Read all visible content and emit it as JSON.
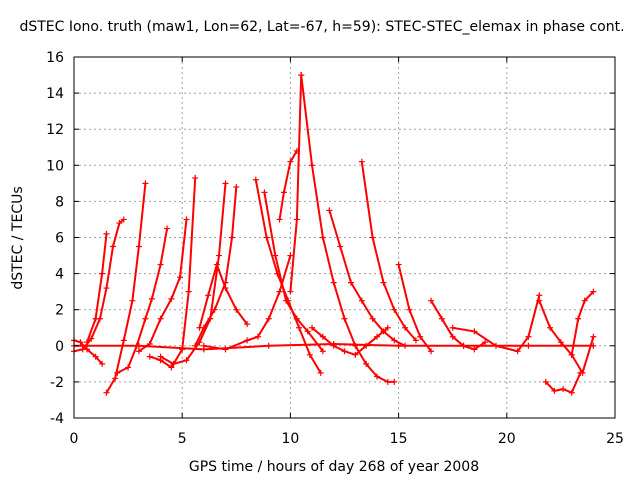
{
  "chart_data": {
    "type": "scatter",
    "title": "dSTEC Iono. truth (maw1, Lon=62, Lat=-67, h=59): STEC-STEC_elemax in phase cont.",
    "xlabel": "GPS time / hours of day 268 of year 2008",
    "ylabel": "dSTEC  / TECUs",
    "xlim": [
      0,
      25
    ],
    "ylim": [
      -4,
      16
    ],
    "xticks": [
      0,
      5,
      10,
      15,
      20,
      25
    ],
    "yticks": [
      -4,
      -2,
      0,
      2,
      4,
      6,
      8,
      10,
      12,
      14,
      16
    ],
    "grid": true,
    "marker": "+",
    "color": "#ff0000",
    "arcs": [
      {
        "x": [
          0.0,
          0.3,
          0.6,
          1.0,
          1.3
        ],
        "y": [
          0.3,
          0.2,
          -0.2,
          -0.6,
          -1.0
        ]
      },
      {
        "x": [
          0.0,
          0.4,
          0.8,
          1.2,
          1.5,
          1.8,
          2.1,
          2.3
        ],
        "y": [
          -0.3,
          -0.2,
          0.4,
          1.5,
          3.2,
          5.5,
          6.8,
          7.0
        ]
      },
      {
        "x": [
          1.5,
          1.9,
          2.3,
          2.7,
          3.0,
          3.3
        ],
        "y": [
          -2.6,
          -1.8,
          0.3,
          2.5,
          5.5,
          9.0
        ]
      },
      {
        "x": [
          0.6,
          1.0,
          1.3,
          1.5
        ],
        "y": [
          0.2,
          1.5,
          4.0,
          6.2
        ]
      },
      {
        "x": [
          2.0,
          2.5,
          2.9,
          3.3,
          3.6,
          4.0,
          4.3
        ],
        "y": [
          -1.5,
          -1.2,
          0.0,
          1.5,
          2.6,
          4.5,
          6.5
        ]
      },
      {
        "x": [
          3.0,
          3.5,
          4.0,
          4.5,
          4.9,
          5.2
        ],
        "y": [
          -0.3,
          0.1,
          1.5,
          2.6,
          3.8,
          7.0
        ]
      },
      {
        "x": [
          3.5,
          4.0,
          4.5,
          5.0,
          5.3,
          5.6
        ],
        "y": [
          -0.6,
          -0.8,
          -1.2,
          -0.2,
          3.0,
          9.3
        ]
      },
      {
        "x": [
          4.0,
          4.6,
          5.2,
          5.8,
          6.3,
          6.7,
          7.0
        ],
        "y": [
          -0.6,
          -1.0,
          -0.8,
          0.2,
          1.5,
          5.0,
          9.0
        ]
      },
      {
        "x": [
          5.6,
          6.0,
          6.5,
          7.0,
          7.3,
          7.5
        ],
        "y": [
          0.0,
          1.0,
          2.0,
          3.5,
          6.0,
          8.8
        ]
      },
      {
        "x": [
          5.8,
          6.2,
          6.6,
          7.0,
          7.5,
          8.0
        ],
        "y": [
          1.0,
          2.8,
          4.5,
          3.2,
          2.0,
          1.2
        ]
      },
      {
        "x": [
          6.0,
          7.0,
          8.0,
          8.5,
          9.0,
          9.5,
          10.0
        ],
        "y": [
          0.0,
          -0.2,
          0.3,
          0.5,
          1.5,
          3.0,
          5.0
        ]
      },
      {
        "x": [
          8.4,
          8.9,
          9.4,
          9.9,
          10.4,
          10.9,
          11.4
        ],
        "y": [
          9.2,
          6.0,
          4.0,
          2.5,
          1.0,
          -0.5,
          -1.5
        ]
      },
      {
        "x": [
          8.8,
          9.3,
          9.8,
          10.3,
          10.8,
          11.5
        ],
        "y": [
          8.5,
          5.0,
          2.5,
          1.5,
          0.8,
          -0.3
        ]
      },
      {
        "x": [
          9.5,
          9.7,
          10.0,
          10.3
        ],
        "y": [
          7.0,
          8.5,
          10.2,
          10.8
        ]
      },
      {
        "x": [
          10.0,
          10.3,
          10.5
        ],
        "y": [
          3.0,
          7.0,
          15.0
        ]
      },
      {
        "x": [
          10.5,
          11.0,
          11.5,
          12.0,
          12.5,
          13.0,
          13.5,
          14.0,
          14.5,
          14.8
        ],
        "y": [
          15.0,
          10.0,
          6.0,
          3.5,
          1.5,
          0.0,
          -1.0,
          -1.7,
          -2.0,
          -2.0
        ]
      },
      {
        "x": [
          11.0,
          11.5,
          12.0,
          12.5,
          13.0,
          13.5,
          14.0,
          14.5
        ],
        "y": [
          1.0,
          0.5,
          0.0,
          -0.3,
          -0.5,
          0.0,
          0.5,
          1.0
        ]
      },
      {
        "x": [
          11.8,
          12.3,
          12.8,
          13.3,
          13.8,
          14.3,
          14.8,
          15.3
        ],
        "y": [
          7.5,
          5.5,
          3.5,
          2.5,
          1.5,
          0.8,
          0.3,
          0.0
        ]
      },
      {
        "x": [
          13.3,
          13.8,
          14.3,
          14.8,
          15.3,
          15.8
        ],
        "y": [
          10.2,
          6.0,
          3.5,
          2.0,
          1.0,
          0.3
        ]
      },
      {
        "x": [
          15.0,
          15.5,
          16.0,
          16.5
        ],
        "y": [
          4.5,
          2.0,
          0.5,
          -0.3
        ]
      },
      {
        "x": [
          16.5,
          17.0,
          17.5,
          18.0,
          18.5,
          19.0
        ],
        "y": [
          2.5,
          1.5,
          0.5,
          0.0,
          -0.2,
          0.2
        ]
      },
      {
        "x": [
          17.5,
          18.5,
          19.5,
          20.5,
          21.0,
          21.5
        ],
        "y": [
          1.0,
          0.8,
          0.0,
          -0.3,
          0.5,
          2.8
        ]
      },
      {
        "x": [
          21.5,
          22.0,
          22.5,
          23.0,
          23.5,
          24.0
        ],
        "y": [
          2.5,
          1.0,
          0.2,
          -0.5,
          -1.5,
          0.5
        ]
      },
      {
        "x": [
          21.8,
          22.2,
          22.6,
          23.0,
          23.4
        ],
        "y": [
          -2.0,
          -2.5,
          -2.4,
          -2.6,
          -1.5
        ]
      },
      {
        "x": [
          23.0,
          23.3,
          23.6,
          24.0
        ],
        "y": [
          -0.5,
          1.5,
          2.5,
          3.0
        ]
      },
      {
        "x": [
          0.0,
          3.0,
          6.0,
          9.0,
          12.0,
          15.0,
          18.0,
          21.0,
          24.0
        ],
        "y": [
          0.0,
          0.0,
          -0.2,
          0.0,
          0.1,
          0.0,
          0.0,
          0.0,
          0.0
        ]
      }
    ]
  }
}
